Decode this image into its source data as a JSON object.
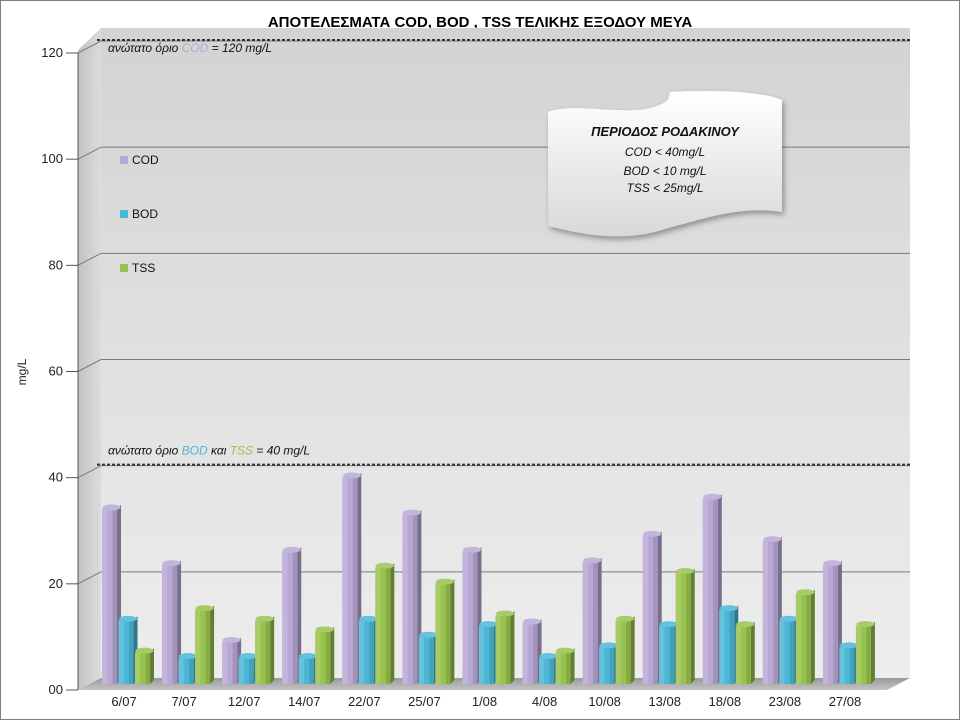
{
  "chart_data": {
    "type": "bar",
    "title": "ΑΠΟΤΕΛΕΣΜΑΤΑ COD, BOD , TSS ΤΕΛΙΚΗΣ ΕΞΟΔΟΥ ΜΕΥΑ",
    "ylabel": "mg/L",
    "xlabel": "",
    "ylim": [
      0,
      120
    ],
    "yticks": [
      "00",
      "20",
      "40",
      "60",
      "80",
      "100",
      "120"
    ],
    "grid": true,
    "legend_position": "left",
    "categories": [
      "6/07",
      "7/07",
      "12/07",
      "14/07",
      "22/07",
      "25/07",
      "1/08",
      "4/08",
      "10/08",
      "13/08",
      "18/08",
      "23/08",
      "27/08"
    ],
    "series": [
      {
        "name": "COD",
        "color": "#b8a7d4",
        "values": [
          33,
          22.5,
          8,
          25,
          39,
          32,
          25,
          11.5,
          23,
          28,
          35,
          27,
          22.5
        ]
      },
      {
        "name": "BOD",
        "color": "#4bb6d6",
        "values": [
          12,
          5,
          5,
          5,
          12,
          9,
          11,
          5,
          7,
          11,
          14,
          12,
          7
        ]
      },
      {
        "name": "TSS",
        "color": "#98c24e",
        "values": [
          6,
          14,
          12,
          10,
          22,
          19,
          13,
          6,
          12,
          21,
          11,
          17,
          11
        ]
      }
    ],
    "limit_lines": [
      {
        "value": 120,
        "label_parts": [
          {
            "text": "ανώτατο όριο ",
            "color": "#111111"
          },
          {
            "text": "COD",
            "color": "#b8a7d4"
          },
          {
            "text": " = 120 mg/L",
            "color": "#111111"
          }
        ]
      },
      {
        "value": 40,
        "label_parts": [
          {
            "text": "ανώτατο όριο ",
            "color": "#111111"
          },
          {
            "text": "BOD",
            "color": "#4bb6d6"
          },
          {
            "text": " και ",
            "color": "#111111"
          },
          {
            "text": "TSS",
            "color": "#98c24e"
          },
          {
            "text": " = 40 mg/L",
            "color": "#111111"
          }
        ]
      }
    ],
    "info_box": {
      "title": "ΠΕΡΙΟΔΟΣ ΡΟΔΑΚΙΝΟΥ",
      "lines": [
        "COD < 40mg/L",
        "BOD < 10 mg/L",
        "TSS < 25mg/L"
      ]
    }
  }
}
